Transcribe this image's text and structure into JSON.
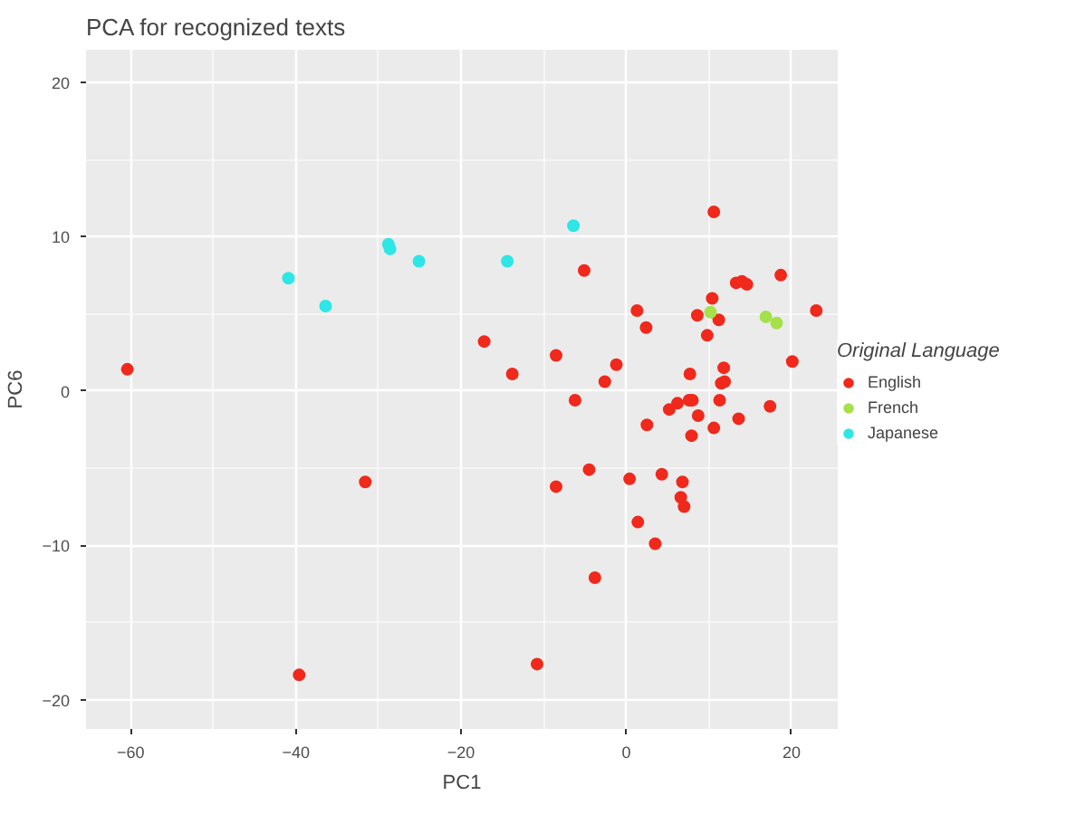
{
  "chart_data": {
    "type": "scatter",
    "title": "PCA for recognized texts",
    "xlabel": "PC1",
    "ylabel": "PC6",
    "legend_title": "Original Language",
    "xlim": [
      -65.4,
      25.6
    ],
    "ylim": [
      -21.9,
      22.1
    ],
    "xticks": [
      -60,
      -40,
      -20,
      0,
      20
    ],
    "yticks": [
      -20,
      -10,
      0,
      10,
      20
    ],
    "grid": true,
    "legend": "right",
    "marker": "circle",
    "series": [
      {
        "name": "English",
        "color": "#f0291c",
        "x": [
          -60.4,
          -17.2,
          -13.8,
          -5.1,
          10.6,
          13.3,
          14.0,
          14.6,
          18.7,
          10.4,
          1.3,
          8.6,
          11.2,
          23.0,
          2.4,
          9.8,
          -8.5,
          -1.2,
          20.1,
          11.8,
          7.7,
          -2.6,
          11.5,
          11.9,
          -6.2,
          7.6,
          8.0,
          11.3,
          6.2,
          5.2,
          17.4,
          8.7,
          13.6,
          2.5,
          10.6,
          7.9,
          -4.5,
          -8.5,
          0.4,
          4.3,
          6.8,
          6.6,
          7.0,
          1.4,
          3.5,
          -3.8,
          -31.6,
          -39.6,
          -10.8
        ],
        "values": [
          1.4,
          3.2,
          1.1,
          7.8,
          11.6,
          7.0,
          7.1,
          6.9,
          7.5,
          6.0,
          5.2,
          4.9,
          4.6,
          5.2,
          4.1,
          3.6,
          2.3,
          1.7,
          1.9,
          1.5,
          1.1,
          0.6,
          0.5,
          0.6,
          -0.6,
          -0.6,
          -0.6,
          -0.6,
          -0.8,
          -1.2,
          -1.0,
          -1.6,
          -1.8,
          -2.2,
          -2.4,
          -2.9,
          -5.1,
          -6.2,
          -5.7,
          -5.4,
          -5.9,
          -6.9,
          -7.5,
          -8.5,
          -9.9,
          -12.1,
          -5.9,
          -18.4,
          -17.7
        ]
      },
      {
        "name": "French",
        "color": "#a6e04a",
        "x": [
          10.2,
          16.9,
          18.2
        ],
        "values": [
          5.1,
          4.8,
          4.4
        ]
      },
      {
        "name": "Japanese",
        "color": "#2ee6e6",
        "x": [
          -40.9,
          -36.4,
          -28.8,
          -28.6,
          -25.1,
          -14.4,
          -6.4
        ],
        "values": [
          7.3,
          5.5,
          9.5,
          9.2,
          8.4,
          8.4,
          10.7
        ]
      }
    ]
  }
}
